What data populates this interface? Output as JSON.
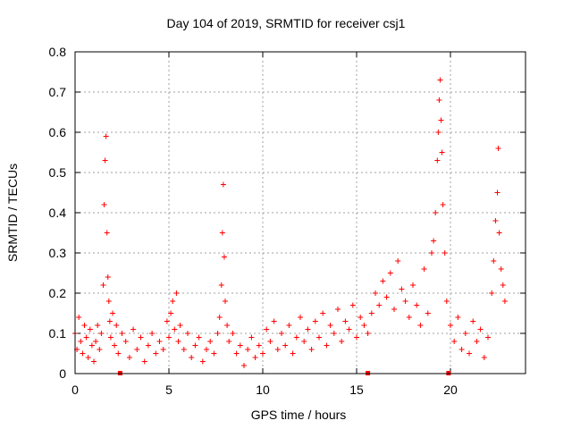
{
  "chart_data": {
    "type": "scatter",
    "title": "Day 104 of 2019, SRMTID for receiver csj1",
    "xlabel": "GPS time / hours",
    "ylabel": "SRMTID / TECUs",
    "xlim": [
      0,
      24
    ],
    "ylim": [
      0,
      0.8
    ],
    "xticks": [
      "0",
      "5",
      "10",
      "15",
      "20"
    ],
    "yticks": [
      "0",
      "0.1",
      "0.2",
      "0.3",
      "0.4",
      "0.5",
      "0.6",
      "0.7",
      "0.8"
    ],
    "grid": true,
    "marker": "+",
    "color": "#ff0000",
    "series": [
      {
        "name": "SRMTID",
        "x": [
          0.0,
          0.1,
          0.2,
          0.3,
          0.4,
          0.5,
          0.6,
          0.7,
          0.8,
          0.9,
          1.0,
          1.1,
          1.2,
          1.3,
          1.4,
          1.5,
          1.55,
          1.6,
          1.65,
          1.7,
          1.75,
          1.8,
          1.85,
          1.9,
          2.0,
          2.1,
          2.2,
          2.3,
          2.5,
          2.7,
          2.9,
          3.1,
          3.3,
          3.5,
          3.7,
          3.9,
          4.1,
          4.3,
          4.5,
          4.7,
          4.9,
          5.0,
          5.1,
          5.2,
          5.3,
          5.4,
          5.5,
          5.6,
          5.8,
          6.0,
          6.2,
          6.4,
          6.6,
          6.8,
          7.0,
          7.2,
          7.4,
          7.6,
          7.7,
          7.8,
          7.85,
          7.9,
          7.95,
          8.0,
          8.1,
          8.2,
          8.4,
          8.6,
          8.8,
          9.0,
          9.2,
          9.4,
          9.6,
          9.8,
          10.0,
          10.2,
          10.4,
          10.6,
          10.8,
          11.0,
          11.2,
          11.4,
          11.6,
          11.8,
          12.0,
          12.2,
          12.4,
          12.6,
          12.8,
          13.0,
          13.2,
          13.4,
          13.6,
          13.8,
          14.0,
          14.2,
          14.4,
          14.6,
          14.8,
          15.0,
          15.2,
          15.4,
          15.6,
          15.8,
          16.0,
          16.2,
          16.4,
          16.6,
          16.8,
          17.0,
          17.2,
          17.4,
          17.6,
          17.8,
          18.0,
          18.2,
          18.4,
          18.6,
          18.8,
          19.0,
          19.1,
          19.2,
          19.3,
          19.35,
          19.4,
          19.45,
          19.5,
          19.55,
          19.6,
          19.7,
          19.8,
          20.0,
          20.2,
          20.4,
          20.6,
          20.8,
          21.0,
          21.2,
          21.4,
          21.6,
          21.8,
          22.0,
          22.2,
          22.3,
          22.4,
          22.5,
          22.55,
          22.6,
          22.7,
          22.8,
          22.9
        ],
        "values": [
          0.1,
          0.06,
          0.14,
          0.08,
          0.05,
          0.12,
          0.09,
          0.04,
          0.11,
          0.07,
          0.03,
          0.08,
          0.12,
          0.06,
          0.1,
          0.22,
          0.42,
          0.53,
          0.59,
          0.35,
          0.24,
          0.18,
          0.13,
          0.09,
          0.15,
          0.07,
          0.12,
          0.05,
          0.1,
          0.08,
          0.04,
          0.11,
          0.06,
          0.09,
          0.03,
          0.07,
          0.1,
          0.05,
          0.08,
          0.06,
          0.13,
          0.09,
          0.15,
          0.18,
          0.11,
          0.2,
          0.08,
          0.12,
          0.06,
          0.1,
          0.04,
          0.07,
          0.09,
          0.03,
          0.06,
          0.08,
          0.05,
          0.1,
          0.14,
          0.22,
          0.35,
          0.47,
          0.29,
          0.18,
          0.12,
          0.08,
          0.1,
          0.05,
          0.07,
          0.02,
          0.06,
          0.09,
          0.04,
          0.07,
          0.05,
          0.11,
          0.08,
          0.13,
          0.06,
          0.1,
          0.07,
          0.12,
          0.05,
          0.09,
          0.14,
          0.08,
          0.11,
          0.06,
          0.13,
          0.09,
          0.15,
          0.07,
          0.12,
          0.1,
          0.16,
          0.08,
          0.13,
          0.11,
          0.17,
          0.09,
          0.14,
          0.12,
          0.1,
          0.15,
          0.2,
          0.17,
          0.23,
          0.19,
          0.25,
          0.16,
          0.28,
          0.21,
          0.18,
          0.14,
          0.22,
          0.17,
          0.12,
          0.26,
          0.15,
          0.3,
          0.33,
          0.4,
          0.53,
          0.6,
          0.68,
          0.73,
          0.63,
          0.55,
          0.42,
          0.3,
          0.18,
          0.12,
          0.08,
          0.14,
          0.06,
          0.1,
          0.05,
          0.13,
          0.08,
          0.11,
          0.04,
          0.09,
          0.2,
          0.28,
          0.38,
          0.45,
          0.56,
          0.35,
          0.26,
          0.22,
          0.18
        ]
      }
    ],
    "x_markers": [
      2.4,
      15.6,
      19.9
    ]
  }
}
